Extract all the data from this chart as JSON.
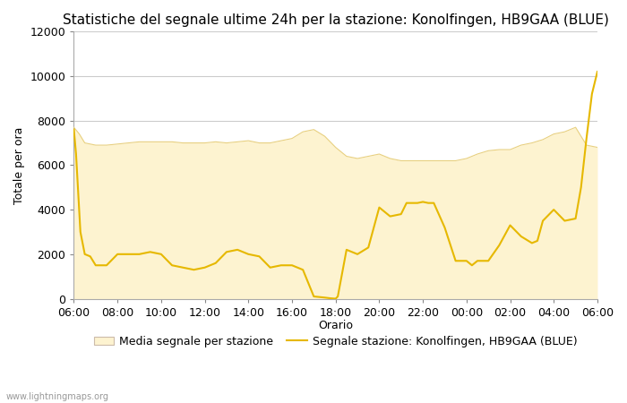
{
  "title": "Statistiche del segnale ultime 24h per la stazione: Konolfingen, HB9GAA (BLUE)",
  "xlabel": "Orario",
  "ylabel": "Totale per ora",
  "ylim": [
    0,
    12000
  ],
  "yticks": [
    0,
    2000,
    4000,
    6000,
    8000,
    10000,
    12000
  ],
  "xtick_labels": [
    "06:00",
    "08:00",
    "10:00",
    "12:00",
    "14:00",
    "16:00",
    "18:00",
    "20:00",
    "22:00",
    "00:00",
    "02:00",
    "04:00",
    "06:00"
  ],
  "background_color": "#ffffff",
  "plot_bg_color": "#ffffff",
  "fill_color": "#fdf3d0",
  "fill_edge_color": "#e8d080",
  "line_color": "#e6b800",
  "watermark": "www.lightningmaps.org",
  "legend_fill": "Media segnale per stazione",
  "legend_line": "Segnale stazione: Konolfingen, HB9GAA (BLUE)",
  "avg_x": [
    0,
    0.25,
    0.5,
    1,
    1.5,
    2,
    2.5,
    3,
    3.5,
    4,
    4.5,
    5,
    5.5,
    6,
    6.5,
    7,
    7.5,
    8,
    8.5,
    9,
    9.5,
    10,
    10.5,
    11,
    11.5,
    12,
    12.5,
    13,
    13.5,
    14,
    14.5,
    15,
    15.5,
    16,
    16.5,
    17,
    17.5,
    18,
    18.5,
    19,
    19.5,
    20,
    20.5,
    21,
    21.5,
    22,
    22.5,
    23,
    23.5,
    24
  ],
  "avg_y": [
    7700,
    7400,
    7000,
    6900,
    6900,
    6950,
    7000,
    7050,
    7050,
    7050,
    7050,
    7000,
    7000,
    7000,
    7050,
    7000,
    7050,
    7100,
    7000,
    7000,
    7100,
    7200,
    7500,
    7600,
    7300,
    6800,
    6400,
    6300,
    6400,
    6500,
    6300,
    6200,
    6200,
    6200,
    6200,
    6200,
    6200,
    6300,
    6500,
    6650,
    6700,
    6700,
    6900,
    7000,
    7150,
    7400,
    7500,
    7700,
    6900,
    6800
  ],
  "signal_x": [
    0,
    0.1,
    0.3,
    0.5,
    0.75,
    1,
    1.5,
    2,
    2.5,
    3,
    3.5,
    4,
    4.5,
    5,
    5.5,
    6,
    6.5,
    7,
    7.5,
    8,
    8.5,
    9,
    9.5,
    10,
    10.5,
    11,
    11.5,
    11.75,
    12,
    12.1,
    12.5,
    13,
    13.5,
    14,
    14.5,
    15,
    15.25,
    15.5,
    15.75,
    16,
    16.25,
    16.5,
    17,
    17.5,
    18,
    18.25,
    18.5,
    19,
    19.5,
    20,
    20.5,
    21,
    21.25,
    21.5,
    22,
    22.5,
    23,
    23.25,
    23.5,
    23.75,
    24
  ],
  "signal_y": [
    7600,
    6500,
    3000,
    2000,
    1900,
    1500,
    1500,
    2000,
    2000,
    2000,
    2100,
    2000,
    1500,
    1400,
    1300,
    1400,
    1600,
    2100,
    2200,
    2000,
    1900,
    1400,
    1500,
    1500,
    1300,
    100,
    50,
    20,
    0,
    100,
    2200,
    2000,
    2300,
    4100,
    3700,
    3800,
    4300,
    4300,
    4300,
    4350,
    4300,
    4300,
    3200,
    1700,
    1700,
    1500,
    1700,
    1700,
    2400,
    3300,
    2800,
    2500,
    2600,
    3500,
    4000,
    3500,
    3600,
    5000,
    7200,
    9200,
    10200
  ],
  "title_fontsize": 11,
  "axis_fontsize": 9,
  "tick_fontsize": 9,
  "legend_fontsize": 9,
  "grid_color": "#cccccc",
  "grid_linewidth": 0.8
}
